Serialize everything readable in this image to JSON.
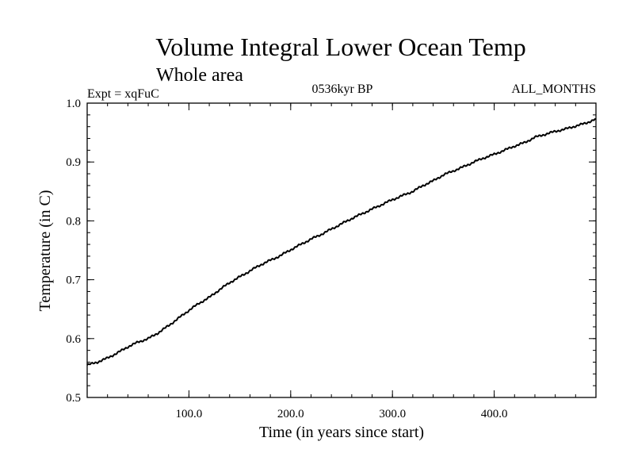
{
  "chart_data": {
    "type": "line",
    "title": "Volume Integral Lower Ocean Temp",
    "subtitle": "Whole area",
    "expt_label": "Expt = xqFuC",
    "period_label": "0536kyr BP",
    "months_label": "ALL_MONTHS",
    "xlabel": "Time (in years since start)",
    "ylabel": "Temperature (in C)",
    "xlim": [
      0,
      500
    ],
    "ylim": [
      0.5,
      1.0
    ],
    "xticks": [
      100,
      200,
      300,
      400
    ],
    "xtick_labels": [
      "100.0",
      "200.0",
      "300.0",
      "400.0"
    ],
    "yticks": [
      0.5,
      0.6,
      0.7,
      0.8,
      0.9,
      1.0
    ],
    "ytick_labels": [
      "0.5",
      "0.6",
      "0.7",
      "0.8",
      "0.9",
      "1.0"
    ],
    "x_minor_step": 20,
    "y_minor_step": 0.02,
    "grid": false,
    "series": [
      {
        "name": "Volume Integral Lower Ocean Temp",
        "x": [
          0,
          10,
          20,
          30,
          40,
          50,
          60,
          70,
          80,
          90,
          100,
          110,
          120,
          130,
          140,
          150,
          160,
          170,
          180,
          190,
          200,
          210,
          220,
          230,
          240,
          250,
          260,
          270,
          280,
          290,
          300,
          310,
          320,
          330,
          340,
          350,
          360,
          370,
          380,
          390,
          400,
          410,
          420,
          430,
          440,
          450,
          460,
          470,
          480,
          490,
          500
        ],
        "values": [
          0.555,
          0.56,
          0.567,
          0.576,
          0.586,
          0.594,
          0.6,
          0.61,
          0.622,
          0.635,
          0.648,
          0.66,
          0.67,
          0.683,
          0.695,
          0.705,
          0.715,
          0.725,
          0.733,
          0.741,
          0.751,
          0.76,
          0.769,
          0.777,
          0.786,
          0.795,
          0.804,
          0.812,
          0.82,
          0.828,
          0.836,
          0.843,
          0.85,
          0.86,
          0.868,
          0.878,
          0.885,
          0.892,
          0.9,
          0.907,
          0.913,
          0.92,
          0.927,
          0.933,
          0.942,
          0.947,
          0.952,
          0.956,
          0.961,
          0.966,
          0.973
        ]
      }
    ]
  }
}
